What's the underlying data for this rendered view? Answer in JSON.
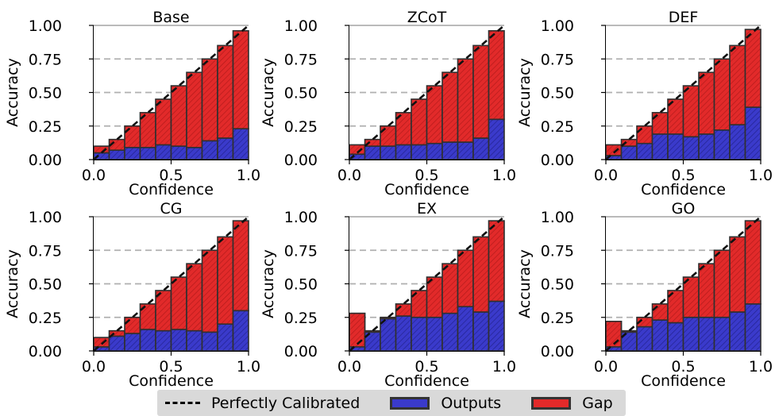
{
  "colors": {
    "outputs": "#3a3acb",
    "gap": "#e22a2a",
    "edge": "#303030",
    "grid": "#b0b0b0"
  },
  "chart_data": [
    {
      "type": "bar",
      "title": "Base",
      "xlabel": "Confidence",
      "ylabel": "Accuracy",
      "xlim": [
        0,
        1
      ],
      "ylim": [
        0,
        1
      ],
      "xticks": [
        "0.0",
        "0.5",
        "1.0"
      ],
      "yticks": [
        "0.00",
        "0.25",
        "0.50",
        "0.75",
        "1.00"
      ],
      "bins": [
        0.05,
        0.15,
        0.25,
        0.35,
        0.45,
        0.55,
        0.65,
        0.75,
        0.85,
        0.95
      ],
      "outputs": [
        0.05,
        0.07,
        0.09,
        0.09,
        0.11,
        0.1,
        0.09,
        0.14,
        0.16,
        0.23
      ],
      "expected": [
        0.1,
        0.15,
        0.25,
        0.35,
        0.45,
        0.55,
        0.65,
        0.75,
        0.85,
        0.96
      ]
    },
    {
      "type": "bar",
      "title": "ZCoT",
      "xlabel": "Confidence",
      "ylabel": "Accuracy",
      "xlim": [
        0,
        1
      ],
      "ylim": [
        0,
        1
      ],
      "xticks": [
        "0.0",
        "0.5",
        "1.0"
      ],
      "yticks": [
        "0.00",
        "0.25",
        "0.50",
        "0.75",
        "1.00"
      ],
      "bins": [
        0.05,
        0.15,
        0.25,
        0.35,
        0.45,
        0.55,
        0.65,
        0.75,
        0.85,
        0.95
      ],
      "outputs": [
        0.04,
        0.1,
        0.1,
        0.11,
        0.11,
        0.12,
        0.13,
        0.13,
        0.16,
        0.3
      ],
      "expected": [
        0.11,
        0.15,
        0.25,
        0.35,
        0.45,
        0.55,
        0.65,
        0.75,
        0.85,
        0.96
      ]
    },
    {
      "type": "bar",
      "title": "DEF",
      "xlabel": "Confidence",
      "ylabel": "Accuracy",
      "xlim": [
        0,
        1
      ],
      "ylim": [
        0,
        1
      ],
      "xticks": [
        "0.0",
        "0.5",
        "1.0"
      ],
      "yticks": [
        "0.00",
        "0.25",
        "0.50",
        "0.75",
        "1.00"
      ],
      "bins": [
        0.05,
        0.15,
        0.25,
        0.35,
        0.45,
        0.55,
        0.65,
        0.75,
        0.85,
        0.95
      ],
      "outputs": [
        0.03,
        0.1,
        0.12,
        0.19,
        0.19,
        0.17,
        0.19,
        0.22,
        0.26,
        0.39
      ],
      "expected": [
        0.11,
        0.15,
        0.25,
        0.35,
        0.45,
        0.55,
        0.65,
        0.75,
        0.85,
        0.97
      ]
    },
    {
      "type": "bar",
      "title": "CG",
      "xlabel": "Confidence",
      "ylabel": "Accuracy",
      "xlim": [
        0,
        1
      ],
      "ylim": [
        0,
        1
      ],
      "xticks": [
        "0.0",
        "0.5",
        "1.0"
      ],
      "yticks": [
        "0.00",
        "0.25",
        "0.50",
        "0.75",
        "1.00"
      ],
      "bins": [
        0.05,
        0.15,
        0.25,
        0.35,
        0.45,
        0.55,
        0.65,
        0.75,
        0.85,
        0.95
      ],
      "outputs": [
        0.03,
        0.11,
        0.13,
        0.16,
        0.15,
        0.16,
        0.15,
        0.14,
        0.2,
        0.3
      ],
      "expected": [
        0.1,
        0.15,
        0.25,
        0.35,
        0.45,
        0.55,
        0.65,
        0.75,
        0.85,
        0.97
      ]
    },
    {
      "type": "bar",
      "title": "EX",
      "xlabel": "Confidence",
      "ylabel": "Accuracy",
      "xlim": [
        0,
        1
      ],
      "ylim": [
        0,
        1
      ],
      "xticks": [
        "0.0",
        "0.5",
        "1.0"
      ],
      "yticks": [
        "0.00",
        "0.25",
        "0.50",
        "0.75",
        "1.00"
      ],
      "bins": [
        0.05,
        0.15,
        0.25,
        0.35,
        0.45,
        0.55,
        0.65,
        0.75,
        0.85,
        0.95
      ],
      "outputs": [
        0.28,
        0.14,
        0.24,
        0.26,
        0.25,
        0.25,
        0.28,
        0.33,
        0.29,
        0.37
      ],
      "expected": [
        0.03,
        0.15,
        0.25,
        0.35,
        0.45,
        0.55,
        0.65,
        0.75,
        0.85,
        0.97
      ]
    },
    {
      "type": "bar",
      "title": "GO",
      "xlabel": "Confidence",
      "ylabel": "Accuracy",
      "xlim": [
        0,
        1
      ],
      "ylim": [
        0,
        1
      ],
      "xticks": [
        "0.0",
        "0.5",
        "1.0"
      ],
      "yticks": [
        "0.00",
        "0.25",
        "0.50",
        "0.75",
        "1.00"
      ],
      "bins": [
        0.05,
        0.15,
        0.25,
        0.35,
        0.45,
        0.55,
        0.65,
        0.75,
        0.85,
        0.95
      ],
      "outputs": [
        0.22,
        0.14,
        0.18,
        0.23,
        0.21,
        0.25,
        0.25,
        0.25,
        0.29,
        0.35
      ],
      "expected": [
        0.03,
        0.15,
        0.25,
        0.35,
        0.45,
        0.55,
        0.65,
        0.75,
        0.85,
        0.97
      ]
    }
  ],
  "legend": {
    "perfect": "Perfectly Calibrated",
    "outputs": "Outputs",
    "gap": "Gap"
  }
}
